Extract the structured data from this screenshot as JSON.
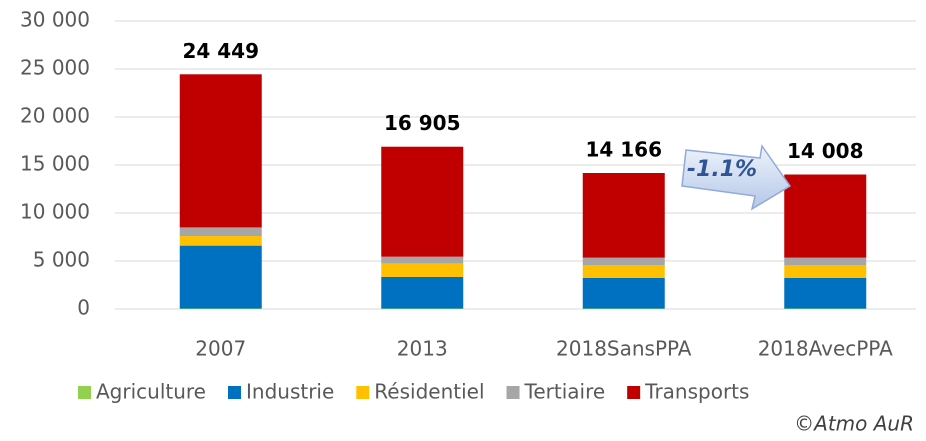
{
  "chart_data": {
    "type": "stacked_bar",
    "categories": [
      "2007",
      "2013",
      "2018SansPPA",
      "2018AvecPPA"
    ],
    "series": [
      {
        "name": "Agriculture",
        "color": "#92d050",
        "values": [
          50,
          50,
          50,
          50
        ]
      },
      {
        "name": "Industrie",
        "color": "#0070c0",
        "values": [
          6550,
          3300,
          3200,
          3200
        ]
      },
      {
        "name": "Résidentiel",
        "color": "#ffc000",
        "values": [
          1000,
          1400,
          1300,
          1300
        ]
      },
      {
        "name": "Tertiaire",
        "color": "#a6a6a6",
        "values": [
          900,
          700,
          800,
          800
        ]
      },
      {
        "name": "Transports",
        "color": "#c00000",
        "values": [
          15949,
          11455,
          8816,
          8658
        ]
      }
    ],
    "totals": [
      24449,
      16905,
      14166,
      14008
    ],
    "total_labels": [
      "24 449",
      "16 905",
      "14 166",
      "14 008"
    ],
    "ylim": [
      0,
      30000
    ],
    "yticks": [
      0,
      {
        "value": 5000,
        "label": "5 000"
      },
      {
        "value": 10000,
        "label": "10 000"
      },
      {
        "value": 15000,
        "label": "15 000"
      },
      {
        "value": 20000,
        "label": "20 000"
      },
      {
        "value": 25000,
        "label": "25 000"
      },
      {
        "value": 30000,
        "label": "30 000"
      }
    ],
    "grid": true,
    "annotation": "-1.1%",
    "credit": "©Atmo AuR"
  }
}
